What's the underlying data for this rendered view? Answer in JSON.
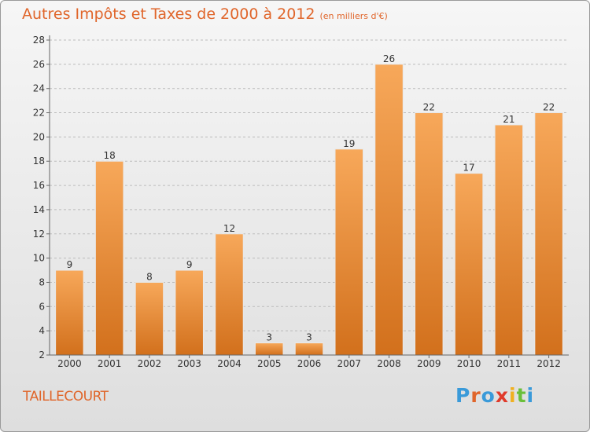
{
  "header": {
    "title": "Autres Impôts et Taxes de 2000 à 2012",
    "unit": "(en milliers d'€)"
  },
  "footer": {
    "commune": "TAILLECOURT",
    "logo_text": "Proxiti",
    "logo_colors": [
      "#3a9ad9",
      "#e0652a",
      "#3a9ad9",
      "#e03a2a",
      "#f0b020",
      "#6abf3a",
      "#3a9ad9"
    ]
  },
  "colors": {
    "bar_light": "#f7a85a",
    "bar_dark": "#d2701c",
    "text": "#333333",
    "grid": "#bbbbbb"
  },
  "chart_data": {
    "type": "bar",
    "categories": [
      "2000",
      "2001",
      "2002",
      "2003",
      "2004",
      "2005",
      "2006",
      "2007",
      "2008",
      "2009",
      "2010",
      "2011",
      "2012"
    ],
    "values": [
      9,
      18,
      8,
      9,
      12,
      3,
      3,
      19,
      26,
      22,
      17,
      21,
      22
    ],
    "data_labels": [
      "9",
      "18",
      "8",
      "9",
      "12",
      "3",
      "3",
      "19",
      "26",
      "22",
      "17",
      "21",
      "22"
    ],
    "title": "Autres Impôts et Taxes de 2000 à 2012",
    "ylim": [
      2,
      28
    ],
    "yticks": [
      "2",
      "4",
      "6",
      "8",
      "10",
      "12",
      "14",
      "16",
      "18",
      "20",
      "22",
      "24",
      "26",
      "28"
    ],
    "grid": true
  }
}
